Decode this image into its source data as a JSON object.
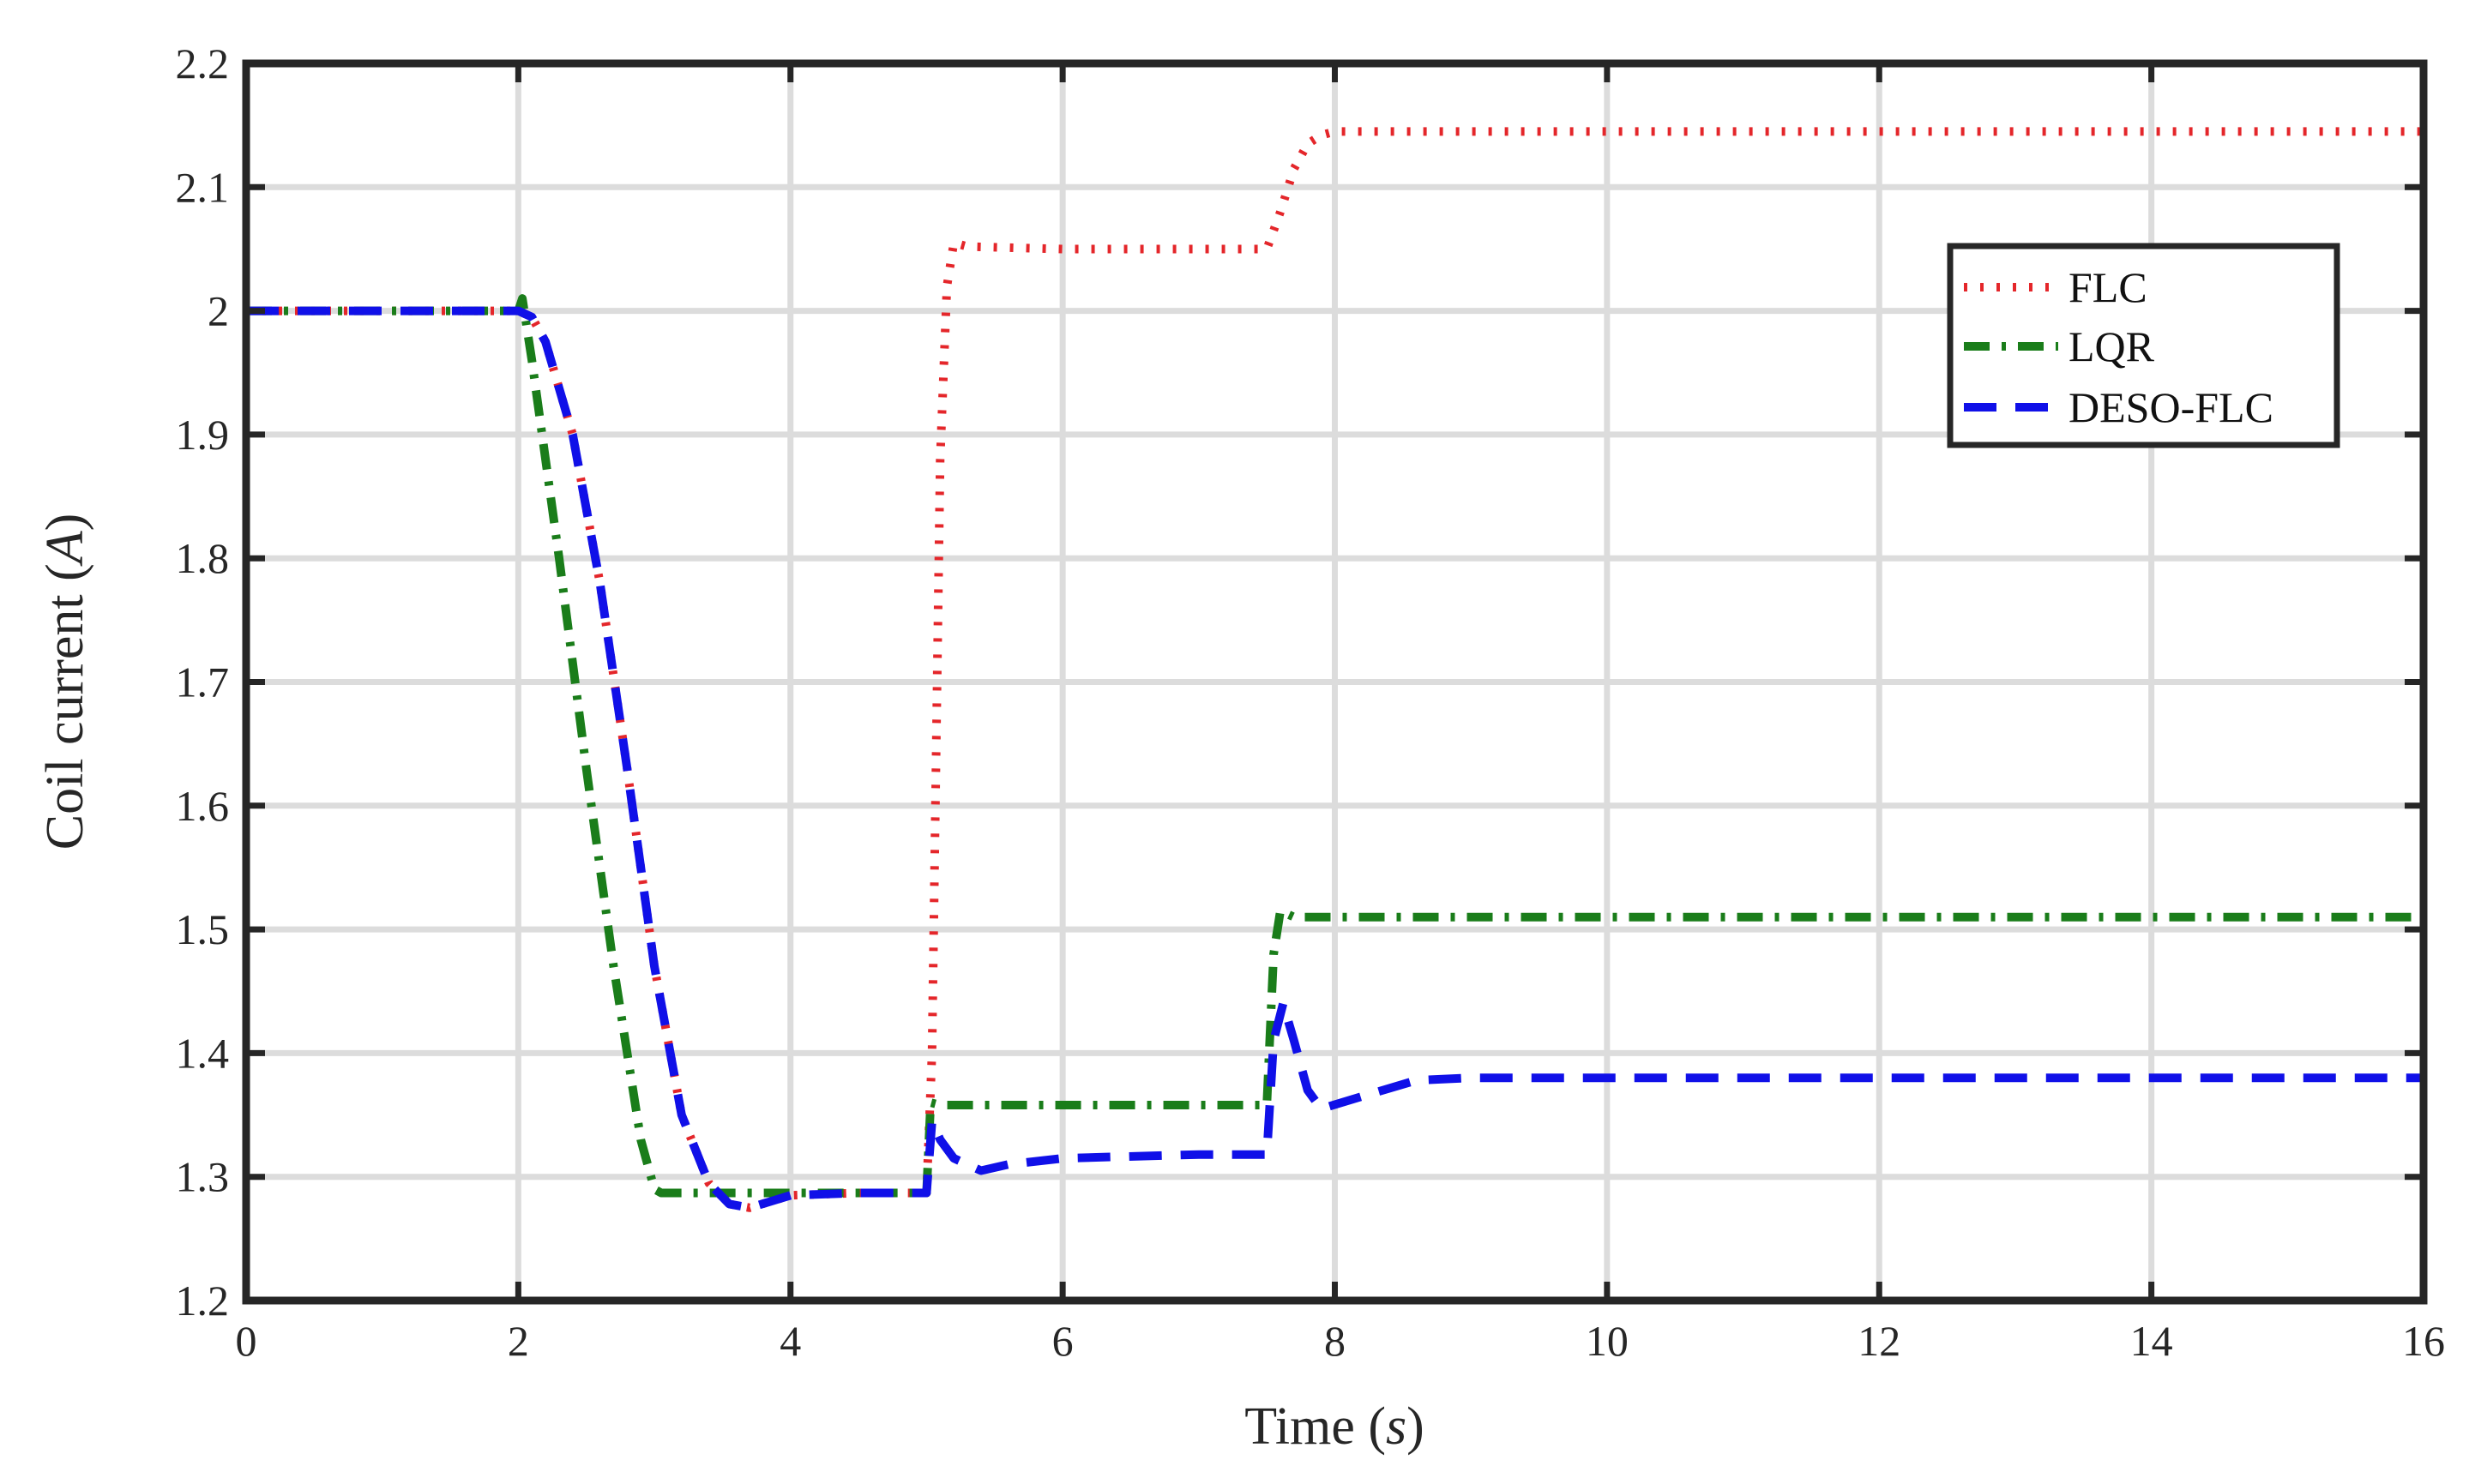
{
  "chart_data": {
    "type": "line",
    "xlabel": "Time",
    "xlabel_unit": "s",
    "ylabel": "Coil current",
    "ylabel_unit": "A",
    "xlim": [
      0,
      16
    ],
    "ylim": [
      1.2,
      2.2
    ],
    "xticks": [
      "0",
      "2",
      "4",
      "6",
      "8",
      "10",
      "12",
      "14",
      "16"
    ],
    "yticks": [
      "1.2",
      "1.3",
      "1.4",
      "1.5",
      "1.6",
      "1.7",
      "1.8",
      "1.9",
      "2",
      "2.1",
      "2.2"
    ],
    "grid": true,
    "legend_position": "top-right",
    "series": [
      {
        "name": "FLC",
        "color": "#e4262a",
        "style": "dotted",
        "x": [
          0,
          2.0,
          2.1,
          2.2,
          2.4,
          2.6,
          2.8,
          3.0,
          3.2,
          3.4,
          3.55,
          3.7,
          3.85,
          4.0,
          4.5,
          5.0,
          5.04,
          5.1,
          5.15,
          5.2,
          5.3,
          6.0,
          7.0,
          7.5,
          7.6,
          7.7,
          7.8,
          7.9,
          8.0,
          8.5,
          16.0
        ],
        "y": [
          2.0,
          2.0,
          1.995,
          1.975,
          1.9,
          1.78,
          1.63,
          1.47,
          1.35,
          1.295,
          1.278,
          1.275,
          1.28,
          1.285,
          1.287,
          1.287,
          1.4,
          1.88,
          2.02,
          2.055,
          2.052,
          2.05,
          2.05,
          2.05,
          2.08,
          2.115,
          2.135,
          2.142,
          2.145,
          2.145,
          2.145
        ]
      },
      {
        "name": "LQR",
        "color": "#1a7d1a",
        "style": "dashdot",
        "x": [
          0,
          2.0,
          2.03,
          2.1,
          2.3,
          2.5,
          2.7,
          2.9,
          3.0,
          3.05,
          3.2,
          4.0,
          5.0,
          5.03,
          5.1,
          6.0,
          7.0,
          7.5,
          7.55,
          7.6,
          7.7,
          8.0,
          16.0
        ],
        "y": [
          2.0,
          2.0,
          2.01,
          1.96,
          1.8,
          1.63,
          1.47,
          1.33,
          1.29,
          1.287,
          1.287,
          1.287,
          1.287,
          1.36,
          1.358,
          1.358,
          1.358,
          1.358,
          1.48,
          1.515,
          1.51,
          1.51,
          1.51
        ]
      },
      {
        "name": "DESO-FLC",
        "color": "#1010e8",
        "style": "dashed",
        "x": [
          0,
          2.0,
          2.1,
          2.2,
          2.4,
          2.6,
          2.8,
          3.0,
          3.2,
          3.4,
          3.55,
          3.7,
          3.85,
          4.0,
          4.5,
          5.0,
          5.04,
          5.1,
          5.2,
          5.4,
          5.6,
          6.0,
          7.0,
          7.5,
          7.55,
          7.62,
          7.7,
          7.8,
          7.9,
          8.2,
          8.6,
          9.0,
          16.0
        ],
        "y": [
          2.0,
          2.0,
          1.995,
          1.975,
          1.9,
          1.78,
          1.63,
          1.47,
          1.35,
          1.295,
          1.278,
          1.275,
          1.28,
          1.285,
          1.287,
          1.287,
          1.345,
          1.33,
          1.315,
          1.305,
          1.31,
          1.315,
          1.318,
          1.318,
          1.41,
          1.44,
          1.41,
          1.37,
          1.355,
          1.365,
          1.378,
          1.38,
          1.38
        ]
      }
    ]
  }
}
